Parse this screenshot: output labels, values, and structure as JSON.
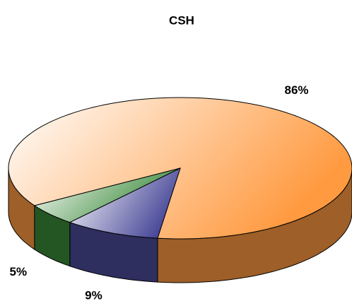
{
  "chart_data": {
    "type": "pie",
    "title": "CSH",
    "values": [
      86,
      9,
      5
    ],
    "value_labels": [
      "86%",
      "9%",
      "5%"
    ],
    "colors": [
      "#ff9a40",
      "#4a4a9a",
      "#3a8a3a"
    ]
  }
}
